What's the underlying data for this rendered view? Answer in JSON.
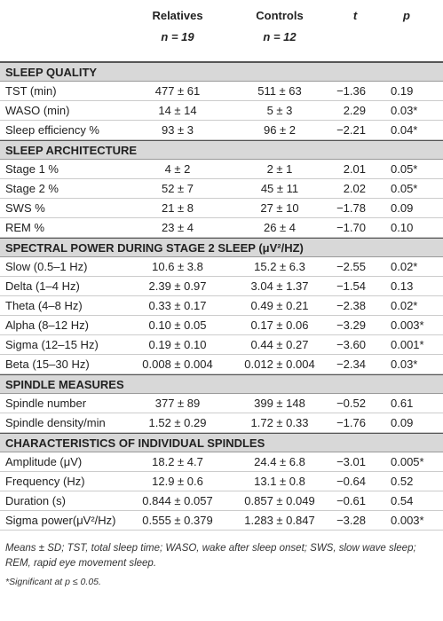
{
  "header": {
    "columns": [
      {
        "label": "Relatives",
        "n": "n = 19"
      },
      {
        "label": "Controls",
        "n": "n = 12"
      },
      {
        "label": "t"
      },
      {
        "label": "p"
      }
    ]
  },
  "sections": [
    {
      "title": "SLEEP QUALITY",
      "rows": [
        [
          "TST (min)",
          "477 ± 61",
          "511 ± 63",
          "−1.36",
          "0.19"
        ],
        [
          "WASO (min)",
          "14 ± 14",
          "5 ± 3",
          "2.29",
          "0.03*"
        ],
        [
          "Sleep efficiency %",
          "93 ± 3",
          "96 ± 2",
          "−2.21",
          "0.04*"
        ]
      ]
    },
    {
      "title": "SLEEP ARCHITECTURE",
      "rows": [
        [
          "Stage 1 %",
          "4 ± 2",
          "2 ± 1",
          "2.01",
          "0.05*"
        ],
        [
          "Stage 2 %",
          "52 ± 7",
          "45 ± 11",
          "2.02",
          "0.05*"
        ],
        [
          "SWS %",
          "21 ± 8",
          "27 ± 10",
          "−1.78",
          "0.09"
        ],
        [
          "REM %",
          "23 ± 4",
          "26 ± 4",
          "−1.70",
          "0.10"
        ]
      ]
    },
    {
      "title": "SPECTRAL POWER DURING STAGE 2 SLEEP (μV²/HZ)",
      "rows": [
        [
          "Slow (0.5–1 Hz)",
          "10.6 ± 3.8",
          "15.2 ± 6.3",
          "−2.55",
          "0.02*"
        ],
        [
          "Delta (1–4 Hz)",
          "2.39 ± 0.97",
          "3.04 ± 1.37",
          "−1.54",
          "0.13"
        ],
        [
          "Theta (4–8 Hz)",
          "0.33 ± 0.17",
          "0.49 ± 0.21",
          "−2.38",
          "0.02*"
        ],
        [
          "Alpha (8–12 Hz)",
          "0.10 ± 0.05",
          "0.17 ± 0.06",
          "−3.29",
          "0.003*"
        ],
        [
          "Sigma (12–15 Hz)",
          "0.19 ± 0.10",
          "0.44 ± 0.27",
          "−3.60",
          "0.001*"
        ],
        [
          "Beta (15–30 Hz)",
          "0.008 ± 0.004",
          "0.012 ± 0.004",
          "−2.34",
          "0.03*"
        ]
      ]
    },
    {
      "title": "SPINDLE MEASURES",
      "rows": [
        [
          "Spindle number",
          "377 ± 89",
          "399 ± 148",
          "−0.52",
          "0.61"
        ],
        [
          "Spindle density/min",
          "1.52 ± 0.29",
          "1.72 ± 0.33",
          "−1.76",
          "0.09"
        ]
      ]
    },
    {
      "title": "CHARACTERISTICS OF INDIVIDUAL SPINDLES",
      "rows": [
        [
          "Amplitude (μV)",
          "18.2 ± 4.7",
          "24.4 ± 6.8",
          "−3.01",
          "0.005*"
        ],
        [
          "Frequency (Hz)",
          "12.9 ± 0.6",
          "13.1 ± 0.8",
          "−0.64",
          "0.52"
        ],
        [
          "Duration (s)",
          "0.844 ± 0.057",
          "0.857 ± 0.049",
          "−0.61",
          "0.54"
        ],
        [
          "Sigma power(μV²/Hz)",
          "0.555 ± 0.379",
          "1.283 ± 0.847",
          "−3.28",
          "0.003*"
        ]
      ]
    }
  ],
  "footnotes": [
    "Means ± SD; TST, total sleep time; WASO, wake after sleep onset; SWS, slow wave sleep; REM, rapid eye movement sleep.",
    "*Significant at p ≤ 0.05."
  ]
}
